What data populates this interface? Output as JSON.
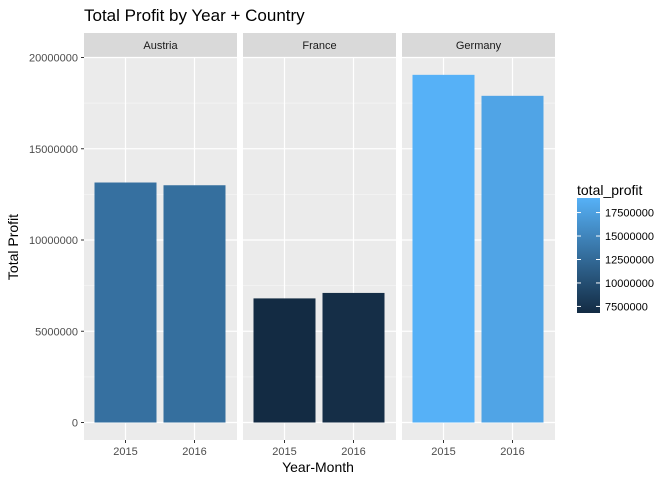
{
  "chart_data": {
    "type": "bar",
    "title": "Total Profit by Year + Country",
    "xlabel": "Year-Month",
    "ylabel": "Total Profit",
    "ylim": [
      0,
      20000000
    ],
    "y_ticks": [
      0,
      5000000,
      10000000,
      15000000,
      20000000
    ],
    "y_tick_labels": [
      "0",
      "5000000",
      "10000000",
      "15000000",
      "20000000"
    ],
    "categories": [
      "2015",
      "2016"
    ],
    "facets": [
      {
        "name": "Austria",
        "values": [
          13150000,
          13000000
        ]
      },
      {
        "name": "France",
        "values": [
          6800000,
          7100000
        ]
      },
      {
        "name": "Germany",
        "values": [
          19050000,
          17900000
        ]
      }
    ],
    "grid": true,
    "legend": {
      "title": "total_profit",
      "position": "right",
      "ticks": [
        17500000,
        15000000,
        12500000,
        10000000,
        7500000
      ],
      "tick_labels": [
        "17500000",
        "15000000",
        "12500000",
        "10000000",
        "7500000"
      ],
      "range": [
        6800000,
        19050000
      ],
      "color_low": "#132B43",
      "color_high": "#56B1F7"
    }
  }
}
